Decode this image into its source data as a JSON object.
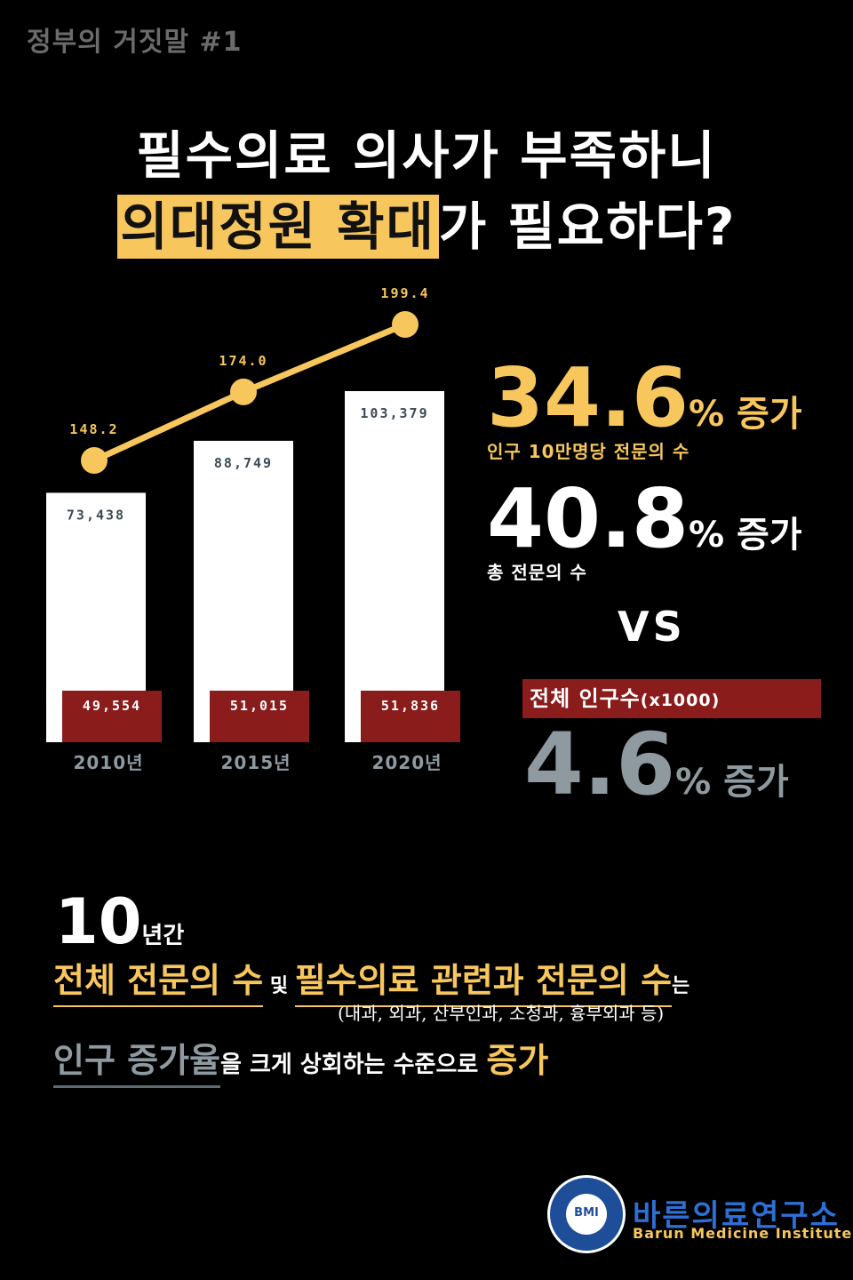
{
  "header": {
    "tag": "정부의 거짓말 #1",
    "title_line1": "필수의료 의사가 부족하니",
    "title_line2_highlight": "의대정원 확대",
    "title_line2_rest": "가 필요하다?"
  },
  "colors": {
    "accent_yellow": "#f7c65c",
    "dark_red": "#8b1c1c",
    "gray": "#8e9aa0",
    "logo_blue": "#1f4e99"
  },
  "chart_data": {
    "type": "bar",
    "categories": [
      "2010년",
      "2015년",
      "2020년"
    ],
    "series": [
      {
        "values": [
          73438,
          88749,
          103379
        ],
        "labels": [
          "73,438",
          "88,749",
          "103,379"
        ],
        "color": "#ffffff"
      },
      {
        "values": [
          49554,
          51015,
          51836
        ],
        "labels": [
          "49,554",
          "51,015",
          "51,836"
        ],
        "color": "#8b1c1c"
      }
    ],
    "line_series": {
      "values": [
        148.2,
        174.0,
        199.4
      ],
      "labels": [
        "148.2",
        "174.0",
        "199.4"
      ],
      "color": "#f7c65c"
    }
  },
  "stats": {
    "stat1_value": "34.6",
    "stat1_suffix": "% 증가",
    "stat1_caption": "인구 10만명당 전문의 수",
    "stat2_value": "40.8",
    "stat2_suffix": "% 증가",
    "stat2_caption": "총 전문의 수",
    "vs": "VS",
    "pop_label": "전체 인구수",
    "pop_unit": "(x1000)",
    "stat3_value": "4.6",
    "stat3_suffix": "% 증가"
  },
  "summary": {
    "years_num": "10",
    "years_suffix": "년간",
    "l1_a": "전체 전문의 수",
    "l1_and": " 및 ",
    "l1_b": "필수의료 관련과 전문의 수",
    "l1_c": "는",
    "paren": "(내과, 외과, 산부인과, 소청과, 흉부외과 등)",
    "l3_a": "인구 증가율",
    "l3_b": "을 크게 상회하는 수준으로 ",
    "l3_c": "증가"
  },
  "org": {
    "logo_text": "BMI",
    "name_ko": "바른의료연구소",
    "name_en": "Barun Medicine Institute"
  }
}
